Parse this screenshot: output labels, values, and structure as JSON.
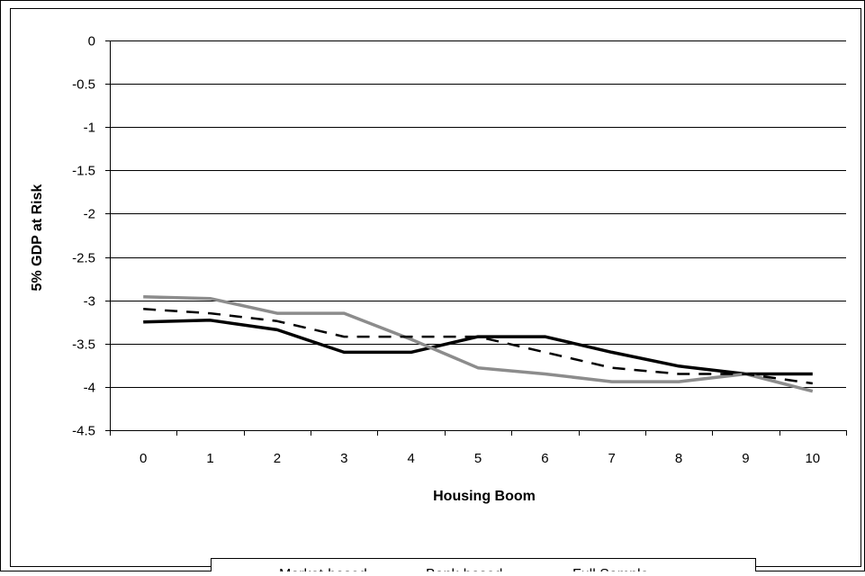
{
  "chart_data": {
    "type": "line",
    "xlabel": "Housing Boom",
    "ylabel": "5% GDP at Risk",
    "x": [
      0,
      1,
      2,
      3,
      4,
      5,
      6,
      7,
      8,
      9,
      10
    ],
    "ylim": [
      -4.5,
      0
    ],
    "yticks": [
      "0",
      "-0.5",
      "-1",
      "-1.5",
      "-2",
      "-2.5",
      "-3",
      "-3.5",
      "-4",
      "-4.5"
    ],
    "xticks": [
      "0",
      "1",
      "2",
      "3",
      "4",
      "5",
      "6",
      "7",
      "8",
      "9",
      "10"
    ],
    "grid": "horizontal",
    "legend_position": "bottom",
    "series": [
      {
        "name": "Market-based",
        "color": "#000000",
        "style": "solid",
        "values": [
          -3.25,
          -3.23,
          -3.34,
          -3.6,
          -3.6,
          -3.42,
          -3.42,
          -3.6,
          -3.76,
          -3.85,
          -3.85
        ]
      },
      {
        "name": "Bank-based",
        "color": "#8c8c8c",
        "style": "solid",
        "values": [
          -2.96,
          -2.98,
          -3.15,
          -3.15,
          -3.45,
          -3.78,
          -3.85,
          -3.94,
          -3.94,
          -3.85,
          -4.05
        ]
      },
      {
        "name": "Full Sample",
        "color": "#000000",
        "style": "dashed",
        "values": [
          -3.1,
          -3.15,
          -3.24,
          -3.42,
          -3.42,
          -3.42,
          -3.6,
          -3.78,
          -3.85,
          -3.85,
          -3.96
        ]
      }
    ]
  }
}
